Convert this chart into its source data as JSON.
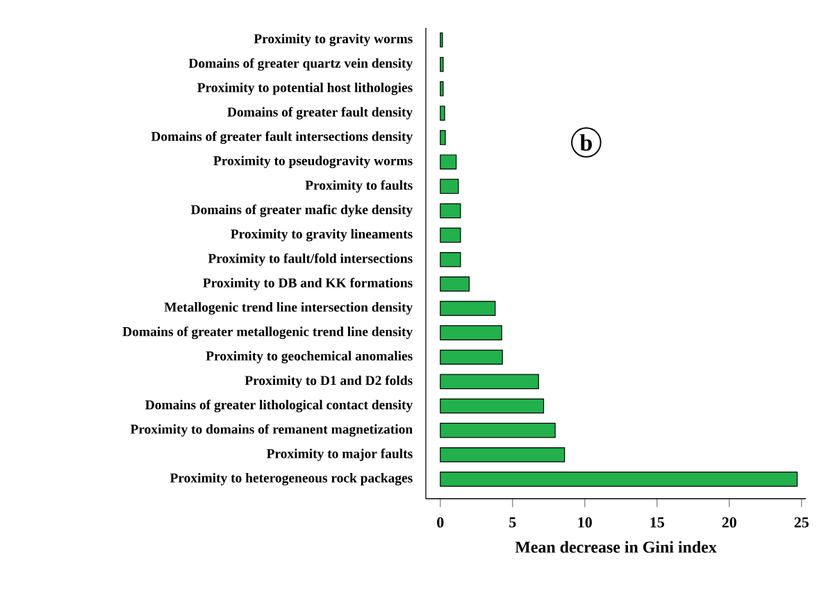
{
  "chart_data": {
    "type": "bar",
    "orientation": "horizontal",
    "categories": [
      "Proximity to gravity worms",
      "Domains of greater quartz vein density",
      "Proximity to potential host lithologies",
      "Domains of greater fault density",
      "Domains of greater fault intersections density",
      "Proximity to pseudogravity worms",
      "Proximity to faults",
      "Domains of greater mafic dyke density",
      "Proximity to gravity lineaments",
      "Proximity to fault/fold intersections",
      "Proximity to DB and KK formations",
      "Metallogenic trend line intersection density",
      "Domains of greater metallogenic trend line density",
      "Proximity to geochemical anomalies",
      "Proximity to D1 and D2 folds",
      "Domains of greater lithological contact density",
      "Proximity to domains of remanent magnetization",
      "Proximity to major faults",
      "Proximity to heterogeneous rock packages"
    ],
    "values": [
      0.15,
      0.2,
      0.2,
      0.3,
      0.35,
      1.1,
      1.25,
      1.4,
      1.4,
      1.4,
      2.0,
      3.8,
      4.25,
      4.3,
      6.8,
      7.15,
      7.95,
      8.6,
      24.7
    ],
    "color": "#22b14c",
    "xlim": [
      -1,
      25.3
    ],
    "xticks": [
      0,
      5,
      10,
      15,
      20,
      25
    ],
    "xlabel": "Mean decrease in Gini index",
    "annotations": [
      "b"
    ]
  }
}
